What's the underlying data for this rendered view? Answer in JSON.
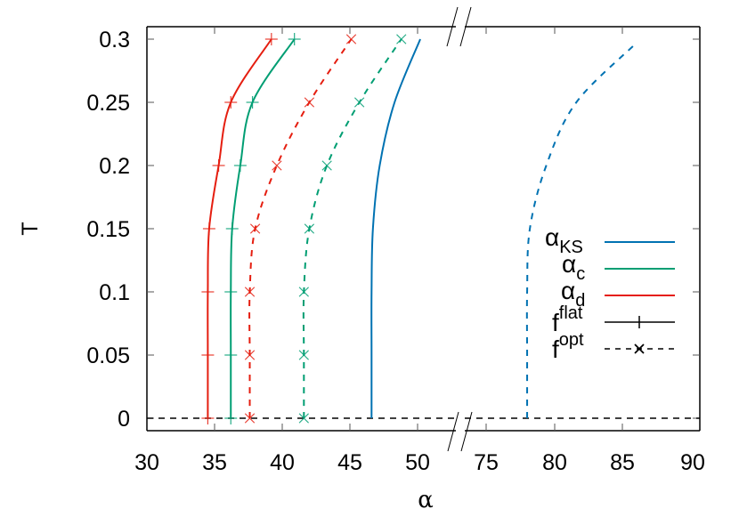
{
  "chart_data": {
    "type": "line",
    "title": "",
    "xlabel": "α",
    "ylabel": "T",
    "xlim_left_segment": [
      30,
      52.5
    ],
    "xlim_right_segment": [
      73,
      90
    ],
    "x_axis_break": {
      "between": [
        52.5,
        73
      ]
    },
    "ylim": [
      -0.01,
      0.31
    ],
    "x_ticks": [
      "30",
      "35",
      "40",
      "45",
      "50",
      "75",
      "80",
      "85",
      "90"
    ],
    "y_ticks": [
      "0",
      "0.05",
      "0.1",
      "0.15",
      "0.2",
      "0.25",
      "0.3"
    ],
    "grid": false,
    "legend_position": "right-middle",
    "legend": [
      {
        "label": "α_KS",
        "main": "α",
        "sub": "KS",
        "sup": "",
        "style": "solid",
        "color": "#0072b2"
      },
      {
        "label": "α_c",
        "main": "α",
        "sub": "c",
        "sup": "",
        "style": "solid",
        "color": "#009e73"
      },
      {
        "label": "α_d",
        "main": "α",
        "sub": "d",
        "sup": "",
        "style": "solid",
        "color": "#e51e10"
      },
      {
        "label": "f^flat",
        "main": "f",
        "sub": "",
        "sup": "flat",
        "style": "solid",
        "color": "#000000",
        "marker": "+"
      },
      {
        "label": "f^opt",
        "main": "f",
        "sub": "",
        "sup": "opt",
        "style": "dashed",
        "color": "#000000",
        "marker": "x"
      }
    ],
    "series": [
      {
        "name": "α_d (f^flat)",
        "color": "#e51e10",
        "style": "solid",
        "marker": "+",
        "points": [
          [
            34.5,
            0
          ],
          [
            34.5,
            0.05
          ],
          [
            34.5,
            0.1
          ],
          [
            34.6,
            0.15
          ],
          [
            35.3,
            0.2
          ],
          [
            36.2,
            0.25
          ],
          [
            39.2,
            0.3
          ]
        ]
      },
      {
        "name": "α_c (f^flat)",
        "color": "#009e73",
        "style": "solid",
        "marker": "+",
        "points": [
          [
            36.2,
            0
          ],
          [
            36.2,
            0.05
          ],
          [
            36.2,
            0.1
          ],
          [
            36.3,
            0.15
          ],
          [
            36.9,
            0.2
          ],
          [
            37.8,
            0.25
          ],
          [
            40.9,
            0.3
          ]
        ]
      },
      {
        "name": "α_d (f^opt)",
        "color": "#e51e10",
        "style": "dashed",
        "marker": "x",
        "points": [
          [
            37.6,
            0
          ],
          [
            37.6,
            0.05
          ],
          [
            37.6,
            0.1
          ],
          [
            38.0,
            0.15
          ],
          [
            39.6,
            0.2
          ],
          [
            42.0,
            0.25
          ],
          [
            45.1,
            0.3
          ]
        ]
      },
      {
        "name": "α_c (f^opt)",
        "color": "#009e73",
        "style": "dashed",
        "marker": "x",
        "points": [
          [
            41.6,
            0
          ],
          [
            41.6,
            0.05
          ],
          [
            41.6,
            0.1
          ],
          [
            42.0,
            0.15
          ],
          [
            43.3,
            0.2
          ],
          [
            45.7,
            0.25
          ],
          [
            48.8,
            0.3
          ]
        ]
      },
      {
        "name": "α_KS (f^flat)",
        "color": "#0072b2",
        "style": "solid",
        "marker": "none",
        "points": [
          [
            46.6,
            0
          ],
          [
            46.6,
            0.05
          ],
          [
            46.6,
            0.1
          ],
          [
            46.7,
            0.15
          ],
          [
            47.2,
            0.2
          ],
          [
            48.3,
            0.25
          ],
          [
            50.2,
            0.3
          ]
        ]
      },
      {
        "name": "α_KS (f^opt)",
        "color": "#0072b2",
        "style": "dashed",
        "marker": "none",
        "points": [
          [
            78.0,
            0
          ],
          [
            78.0,
            0.05
          ],
          [
            78.0,
            0.1
          ],
          [
            78.2,
            0.15
          ],
          [
            79.4,
            0.2
          ],
          [
            81.6,
            0.25
          ],
          [
            86.0,
            0.297
          ]
        ]
      },
      {
        "name": "T=0 reference",
        "color": "#000000",
        "style": "dashed",
        "marker": "none",
        "points": [
          [
            30,
            0
          ],
          [
            90,
            0
          ]
        ]
      }
    ]
  },
  "axes": {
    "xlabel": "α",
    "ylabel": "T",
    "x_ticks_left": [
      "30",
      "35",
      "40",
      "45",
      "50"
    ],
    "x_ticks_right": [
      "75",
      "80",
      "85",
      "90"
    ],
    "y_ticks": [
      "0.3",
      "0.25",
      "0.2",
      "0.15",
      "0.1",
      "0.05",
      "0"
    ]
  },
  "legend": {
    "items": [
      {
        "main": "α",
        "sub": "KS",
        "sup": "",
        "color": "#0072b2"
      },
      {
        "main": "α",
        "sub": "c",
        "sup": "",
        "color": "#009e73"
      },
      {
        "main": "α",
        "sub": "d",
        "sup": "",
        "color": "#e51e10"
      },
      {
        "main": "f",
        "sub": "",
        "sup": "flat",
        "color": "#000000"
      },
      {
        "main": "f",
        "sub": "",
        "sup": "opt",
        "color": "#000000"
      }
    ]
  }
}
